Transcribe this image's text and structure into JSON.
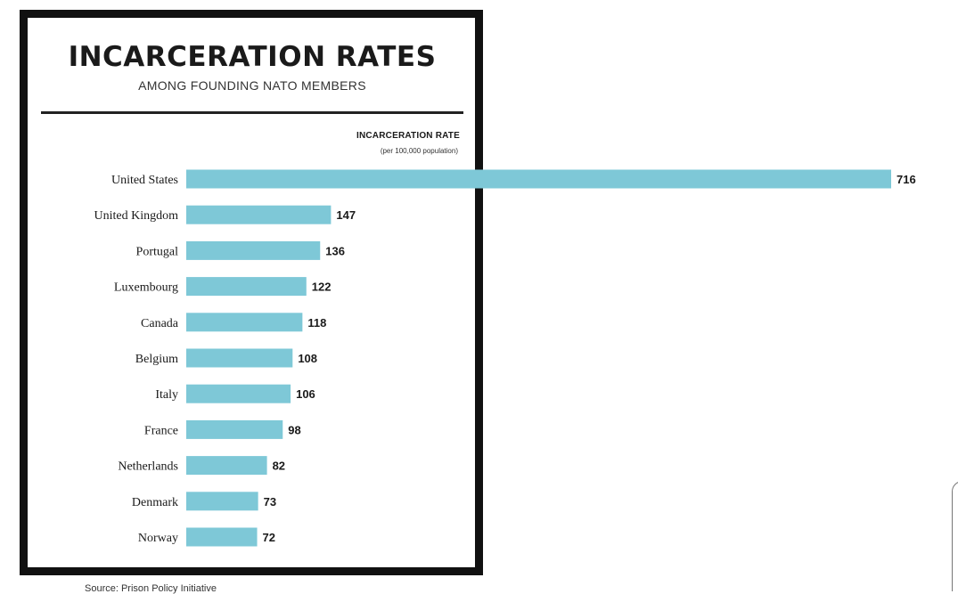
{
  "chart_data": {
    "type": "bar",
    "orientation": "horizontal",
    "title": "INCARCERATION RATES",
    "subtitle": "AMONG FOUNDING NATO MEMBERS",
    "column_header": "INCARCERATION RATE",
    "column_subheader": "(per 100,000 population)",
    "categories": [
      "United States",
      "United Kingdom",
      "Portugal",
      "Luxembourg",
      "Canada",
      "Belgium",
      "Italy",
      "France",
      "Netherlands",
      "Denmark",
      "Norway"
    ],
    "values": [
      716,
      147,
      136,
      122,
      118,
      108,
      106,
      98,
      82,
      73,
      72
    ],
    "xlim": [
      0,
      716
    ],
    "bar_color": "#7ec8d7",
    "grid": false,
    "legend": "none"
  },
  "footer": "Source: Prison Policy Initiative"
}
